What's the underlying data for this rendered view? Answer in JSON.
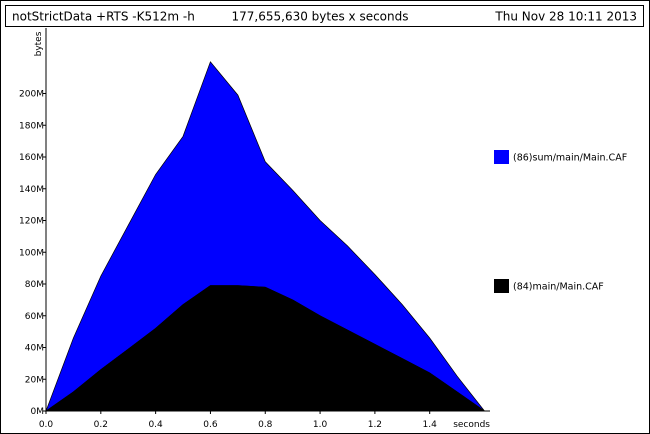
{
  "header": {
    "program": "notStrictData +RTS -K512m -h",
    "total": "177,655,630 bytes x seconds",
    "date": "Thu Nov 28 10:11 2013"
  },
  "chart_data": {
    "type": "area",
    "stacked": true,
    "xlabel": "seconds",
    "ylabel": "bytes",
    "xlim": [
      0.0,
      1.62
    ],
    "ylim": [
      0,
      240
    ],
    "x_ticks": [
      {
        "value": 0.0,
        "label": "0.0"
      },
      {
        "value": 0.2,
        "label": "0.2"
      },
      {
        "value": 0.4,
        "label": "0.4"
      },
      {
        "value": 0.6,
        "label": "0.6"
      },
      {
        "value": 0.8,
        "label": "0.8"
      },
      {
        "value": 1.0,
        "label": "1.0"
      },
      {
        "value": 1.2,
        "label": "1.2"
      },
      {
        "value": 1.4,
        "label": "1.4"
      }
    ],
    "y_ticks": [
      {
        "value": 0,
        "label": "0M"
      },
      {
        "value": 20,
        "label": "20M"
      },
      {
        "value": 40,
        "label": "40M"
      },
      {
        "value": 60,
        "label": "60M"
      },
      {
        "value": 80,
        "label": "80M"
      },
      {
        "value": 100,
        "label": "100M"
      },
      {
        "value": 120,
        "label": "120M"
      },
      {
        "value": 140,
        "label": "140M"
      },
      {
        "value": 160,
        "label": "160M"
      },
      {
        "value": 180,
        "label": "180M"
      },
      {
        "value": 200,
        "label": "200M"
      }
    ],
    "x": [
      0.0,
      0.1,
      0.2,
      0.3,
      0.4,
      0.5,
      0.6,
      0.7,
      0.8,
      0.9,
      1.0,
      1.1,
      1.2,
      1.3,
      1.4,
      1.5,
      1.6
    ],
    "series": [
      {
        "name": "(86)sum/main/Main.CAF",
        "color": "#0000ff",
        "values": [
          0,
          34,
          59,
          78,
          97,
          106,
          141,
          120,
          79,
          69,
          60,
          53,
          44,
          34,
          22,
          10,
          0
        ]
      },
      {
        "name": "(84)main/Main.CAF",
        "color": "#000000",
        "values": [
          0,
          12,
          26,
          39,
          52,
          67,
          79,
          79,
          78,
          70,
          60,
          51,
          42,
          33,
          24,
          12,
          0
        ]
      }
    ],
    "legend_position": "right"
  }
}
